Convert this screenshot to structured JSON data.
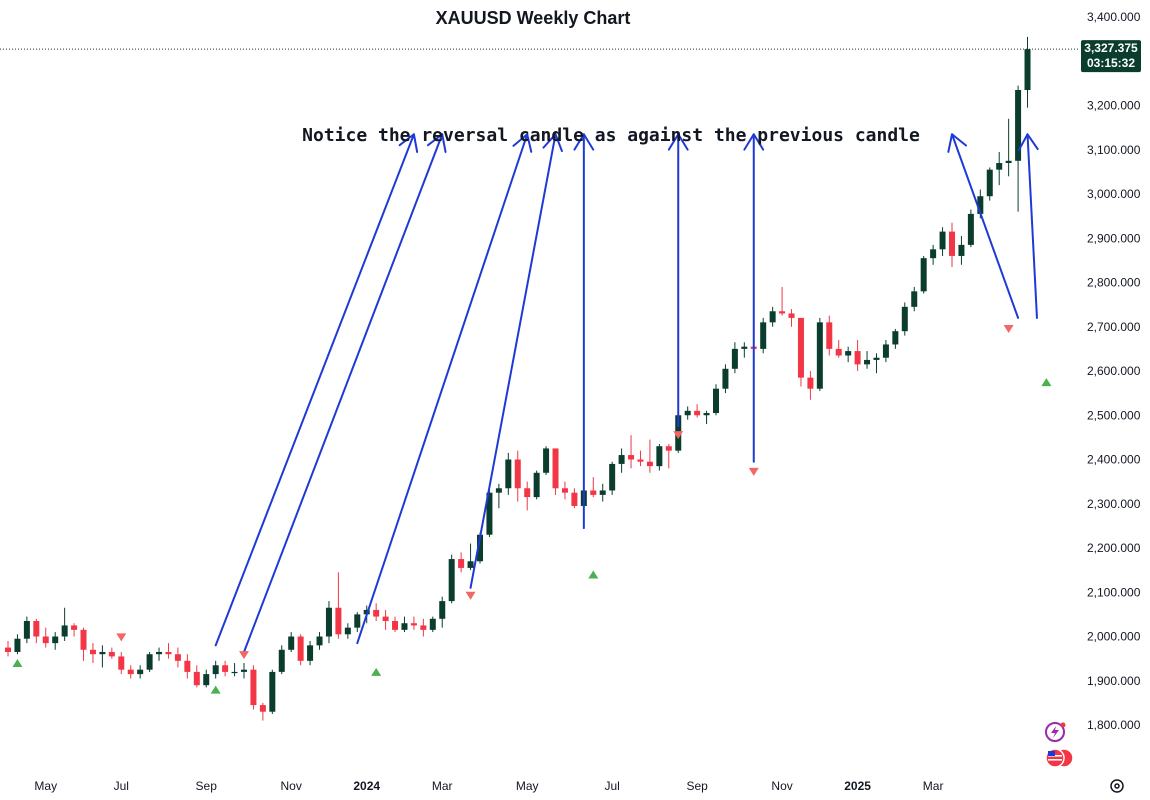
{
  "chart_data": {
    "type": "candlestick",
    "title": "XAUUSD Weekly Chart",
    "annotation": "Notice the reversal candle as against the previous candle",
    "ylim": [
      1760,
      3420
    ],
    "y_ticks": [
      "3,400.000",
      "3,300.000",
      "3,200.000",
      "3,100.000",
      "3,000.000",
      "2,900.000",
      "2,800.000",
      "2,700.000",
      "2,600.000",
      "2,500.000",
      "2,400.000",
      "2,300.000",
      "2,200.000",
      "2,100.000",
      "2,000.000",
      "1,900.000",
      "1,800.000"
    ],
    "x_ticks": [
      {
        "label": "May",
        "index": 4,
        "bold": false
      },
      {
        "label": "Jul",
        "index": 12,
        "bold": false
      },
      {
        "label": "Sep",
        "index": 21,
        "bold": false
      },
      {
        "label": "Nov",
        "index": 30,
        "bold": false
      },
      {
        "label": "2024",
        "index": 38,
        "bold": true
      },
      {
        "label": "Mar",
        "index": 46,
        "bold": false
      },
      {
        "label": "May",
        "index": 55,
        "bold": false
      },
      {
        "label": "Jul",
        "index": 64,
        "bold": false
      },
      {
        "label": "Sep",
        "index": 73,
        "bold": false
      },
      {
        "label": "Nov",
        "index": 82,
        "bold": false
      },
      {
        "label": "2025",
        "index": 90,
        "bold": true
      },
      {
        "label": "Mar",
        "index": 98,
        "bold": false
      }
    ],
    "last_price": {
      "value": "3,327.375",
      "timer": "03:15:32",
      "price": 3327.4
    },
    "colors": {
      "up": "#0b3d2e",
      "down": "#f23645",
      "arrow": "#1e3ad6",
      "buy_marker": "#4caf50",
      "sell_marker": "#f26666",
      "tag_bg": "#0b3d2e"
    },
    "candles": [
      [
        1975,
        1990,
        1955,
        1965
      ],
      [
        1965,
        2005,
        1960,
        1995
      ],
      [
        1995,
        2045,
        1985,
        2035
      ],
      [
        2035,
        2040,
        1985,
        2000
      ],
      [
        2000,
        2020,
        1975,
        1985
      ],
      [
        1985,
        2010,
        1970,
        2000
      ],
      [
        2000,
        2065,
        1990,
        2025
      ],
      [
        2025,
        2030,
        2000,
        2015
      ],
      [
        2015,
        2020,
        1945,
        1970
      ],
      [
        1970,
        1985,
        1940,
        1960
      ],
      [
        1960,
        1980,
        1930,
        1965
      ],
      [
        1965,
        1975,
        1950,
        1955
      ],
      [
        1955,
        1965,
        1915,
        1925
      ],
      [
        1925,
        1935,
        1905,
        1915
      ],
      [
        1915,
        1935,
        1905,
        1925
      ],
      [
        1925,
        1965,
        1920,
        1960
      ],
      [
        1960,
        1975,
        1945,
        1965
      ],
      [
        1965,
        1985,
        1950,
        1960
      ],
      [
        1960,
        1975,
        1930,
        1945
      ],
      [
        1945,
        1960,
        1905,
        1920
      ],
      [
        1920,
        1935,
        1885,
        1890
      ],
      [
        1890,
        1925,
        1885,
        1915
      ],
      [
        1915,
        1945,
        1905,
        1935
      ],
      [
        1935,
        1945,
        1910,
        1920
      ],
      [
        1920,
        1940,
        1910,
        1920
      ],
      [
        1920,
        1940,
        1905,
        1925
      ],
      [
        1925,
        1935,
        1835,
        1845
      ],
      [
        1845,
        1850,
        1810,
        1830
      ],
      [
        1830,
        1925,
        1825,
        1920
      ],
      [
        1920,
        1980,
        1915,
        1970
      ],
      [
        1970,
        2010,
        1965,
        2000
      ],
      [
        2000,
        2005,
        1935,
        1945
      ],
      [
        1945,
        1990,
        1935,
        1980
      ],
      [
        1980,
        2010,
        1970,
        2000
      ],
      [
        2000,
        2080,
        1985,
        2065
      ],
      [
        2065,
        2145,
        1995,
        2005
      ],
      [
        2005,
        2030,
        1995,
        2020
      ],
      [
        2020,
        2055,
        2010,
        2050
      ],
      [
        2050,
        2070,
        2030,
        2060
      ],
      [
        2060,
        2075,
        2035,
        2045
      ],
      [
        2045,
        2060,
        2015,
        2035
      ],
      [
        2035,
        2045,
        2010,
        2015
      ],
      [
        2015,
        2045,
        2010,
        2030
      ],
      [
        2030,
        2045,
        2015,
        2025
      ],
      [
        2025,
        2040,
        2000,
        2015
      ],
      [
        2015,
        2045,
        2010,
        2040
      ],
      [
        2040,
        2090,
        2020,
        2080
      ],
      [
        2080,
        2185,
        2075,
        2175
      ],
      [
        2175,
        2190,
        2145,
        2155
      ],
      [
        2155,
        2210,
        2150,
        2170
      ],
      [
        2170,
        2235,
        2165,
        2230
      ],
      [
        2230,
        2335,
        2225,
        2325
      ],
      [
        2325,
        2345,
        2290,
        2335
      ],
      [
        2335,
        2415,
        2320,
        2400
      ],
      [
        2400,
        2420,
        2305,
        2335
      ],
      [
        2335,
        2350,
        2285,
        2315
      ],
      [
        2315,
        2375,
        2310,
        2370
      ],
      [
        2370,
        2430,
        2365,
        2425
      ],
      [
        2425,
        2425,
        2320,
        2335
      ],
      [
        2335,
        2350,
        2310,
        2325
      ],
      [
        2325,
        2335,
        2290,
        2295
      ],
      [
        2295,
        2335,
        2290,
        2330
      ],
      [
        2330,
        2360,
        2315,
        2320
      ],
      [
        2320,
        2345,
        2305,
        2330
      ],
      [
        2330,
        2395,
        2320,
        2390
      ],
      [
        2390,
        2425,
        2370,
        2410
      ],
      [
        2410,
        2455,
        2380,
        2400
      ],
      [
        2400,
        2420,
        2385,
        2395
      ],
      [
        2395,
        2445,
        2370,
        2385
      ],
      [
        2385,
        2435,
        2375,
        2430
      ],
      [
        2430,
        2435,
        2380,
        2420
      ],
      [
        2420,
        2505,
        2415,
        2500
      ],
      [
        2500,
        2520,
        2490,
        2510
      ],
      [
        2510,
        2525,
        2495,
        2500
      ],
      [
        2500,
        2510,
        2480,
        2505
      ],
      [
        2505,
        2570,
        2500,
        2560
      ],
      [
        2560,
        2615,
        2550,
        2605
      ],
      [
        2605,
        2665,
        2595,
        2650
      ],
      [
        2650,
        2665,
        2630,
        2655
      ],
      [
        2655,
        2670,
        2645,
        2650
      ],
      [
        2650,
        2720,
        2640,
        2710
      ],
      [
        2710,
        2745,
        2700,
        2735
      ],
      [
        2735,
        2790,
        2725,
        2730
      ],
      [
        2730,
        2740,
        2700,
        2720
      ],
      [
        2720,
        2720,
        2565,
        2585
      ],
      [
        2585,
        2600,
        2535,
        2560
      ],
      [
        2560,
        2720,
        2555,
        2710
      ],
      [
        2710,
        2725,
        2635,
        2650
      ],
      [
        2650,
        2670,
        2630,
        2635
      ],
      [
        2635,
        2655,
        2620,
        2645
      ],
      [
        2645,
        2670,
        2600,
        2615
      ],
      [
        2615,
        2645,
        2605,
        2625
      ],
      [
        2625,
        2640,
        2595,
        2630
      ],
      [
        2630,
        2670,
        2620,
        2660
      ],
      [
        2660,
        2695,
        2650,
        2690
      ],
      [
        2690,
        2755,
        2680,
        2745
      ],
      [
        2745,
        2790,
        2735,
        2780
      ],
      [
        2780,
        2860,
        2775,
        2855
      ],
      [
        2855,
        2885,
        2840,
        2875
      ],
      [
        2875,
        2925,
        2860,
        2915
      ],
      [
        2915,
        2935,
        2835,
        2860
      ],
      [
        2860,
        2905,
        2840,
        2885
      ],
      [
        2885,
        2965,
        2880,
        2955
      ],
      [
        2955,
        3010,
        2945,
        2995
      ],
      [
        2995,
        3060,
        2985,
        3055
      ],
      [
        3055,
        3095,
        3020,
        3070
      ],
      [
        3070,
        3170,
        3040,
        3075
      ],
      [
        3075,
        3245,
        2960,
        3235
      ],
      [
        3235,
        3355,
        3195,
        3327.4
      ]
    ],
    "buy_markers": [
      [
        1,
        1940
      ],
      [
        22,
        1880
      ],
      [
        39,
        1920
      ],
      [
        62,
        2140
      ],
      [
        110,
        2575
      ]
    ],
    "sell_markers": [
      [
        12,
        1998
      ],
      [
        25,
        1958
      ],
      [
        49,
        2092
      ],
      [
        71,
        2455
      ],
      [
        79,
        2372
      ],
      [
        106,
        2695
      ]
    ],
    "arrows": [
      {
        "from": [
          22,
          1980
        ],
        "to": [
          43,
          3135
        ]
      },
      {
        "from": [
          25,
          1965
        ],
        "to": [
          46,
          3135
        ]
      },
      {
        "from": [
          37,
          1985
        ],
        "to": [
          55,
          3135
        ]
      },
      {
        "from": [
          49,
          2110
        ],
        "to": [
          58,
          3135
        ]
      },
      {
        "from": [
          61,
          2245
        ],
        "to": [
          61,
          3135
        ]
      },
      {
        "from": [
          71,
          2475
        ],
        "to": [
          71,
          3135
        ]
      },
      {
        "from": [
          79,
          2395
        ],
        "to": [
          79,
          3135
        ]
      },
      {
        "from": [
          107,
          2720
        ],
        "to": [
          100,
          3135
        ]
      },
      {
        "from": [
          109,
          2720
        ],
        "to": [
          108,
          3135
        ]
      }
    ]
  }
}
